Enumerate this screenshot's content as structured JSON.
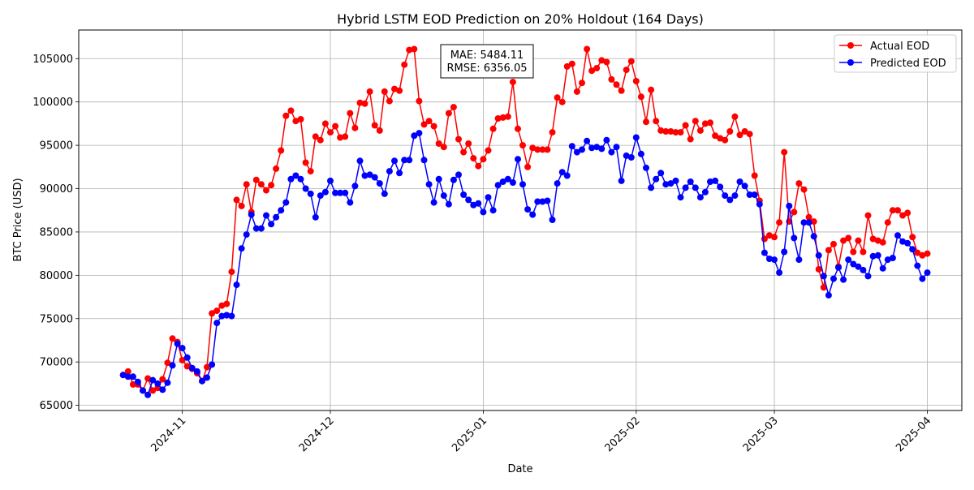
{
  "chart_data": {
    "type": "line",
    "title": "Hybrid LSTM EOD Prediction on 20% Holdout (164 Days)",
    "xlabel": "Date",
    "ylabel": "BTC Price (USD)",
    "grid": true,
    "legend_position": "top-right",
    "annotation": {
      "lines": [
        "MAE: 5484.11",
        "RMSE: 6356.05"
      ]
    },
    "x_start": "2024-10-20",
    "x_ticks": [
      {
        "date": "2024-11-01",
        "label": "2024-11"
      },
      {
        "date": "2024-12-01",
        "label": "2024-12"
      },
      {
        "date": "2025-01-01",
        "label": "2025-01"
      },
      {
        "date": "2025-02-01",
        "label": "2025-02"
      },
      {
        "date": "2025-03-01",
        "label": "2025-03"
      },
      {
        "date": "2025-04-01",
        "label": "2025-04"
      }
    ],
    "y_ticks": [
      65000,
      70000,
      75000,
      80000,
      85000,
      90000,
      95000,
      100000,
      105000
    ],
    "y_tick_labels": [
      "65000",
      "70000",
      "75000",
      "80000",
      "85000",
      "90000",
      "95000",
      "100000",
      "105000"
    ],
    "ylim": [
      64400,
      108300
    ],
    "xlim": [
      "2024-10-11",
      "2025-04-08"
    ],
    "series": [
      {
        "name": "Actual EOD",
        "color": "#ff0000",
        "values": [
          68500,
          68900,
          67400,
          67400,
          66700,
          68100,
          66700,
          67000,
          68000,
          69900,
          72700,
          72300,
          70200,
          69500,
          69200,
          68700,
          67800,
          69400,
          75600,
          75900,
          76500,
          76700,
          80400,
          88700,
          88000,
          90500,
          87300,
          91000,
          90500,
          89800,
          90400,
          92300,
          94400,
          98400,
          99000,
          97800,
          98000,
          93000,
          92000,
          96000,
          95600,
          97500,
          96500,
          97200,
          95900,
          96000,
          98700,
          97000,
          99900,
          99800,
          101200,
          97300,
          96700,
          101200,
          100100,
          101500,
          101300,
          104300,
          106000,
          106100,
          100100,
          97400,
          97800,
          97200,
          95200,
          94800,
          98700,
          99400,
          95700,
          94200,
          95200,
          93500,
          92600,
          93400,
          94400,
          96900,
          98100,
          98200,
          98300,
          102300,
          96900,
          95000,
          92500,
          94700,
          94500,
          94500,
          94500,
          96500,
          100500,
          100000,
          104100,
          104400,
          101200,
          102200,
          106100,
          103600,
          103900,
          104800,
          104600,
          102600,
          102000,
          101300,
          103700,
          104700,
          102400,
          100600,
          97700,
          101400,
          97800,
          96700,
          96600,
          96600,
          96500,
          96500,
          97300,
          95700,
          97800,
          96700,
          97500,
          97600,
          96100,
          95800,
          95600,
          96600,
          98300,
          96200,
          96600,
          96300,
          91500,
          88600,
          84200,
          84600,
          84400,
          86100,
          94200,
          86200,
          87300,
          90600,
          89900,
          86700,
          86200,
          80700,
          78600,
          82900,
          83600,
          81000,
          84000,
          84300,
          82700,
          84000,
          82700,
          86900,
          84200,
          84000,
          83800,
          86100,
          87500,
          87500,
          86900,
          87200,
          84400,
          82600,
          82300,
          82500
        ]
      },
      {
        "name": "Predicted EOD",
        "color": "#0000ff",
        "values": [
          68500,
          68300,
          68300,
          67700,
          66700,
          66200,
          67900,
          67500,
          66800,
          67600,
          69600,
          72100,
          71600,
          70500,
          69300,
          68900,
          67800,
          68200,
          69700,
          74500,
          75300,
          75400,
          75300,
          78900,
          83100,
          84700,
          87000,
          85400,
          85400,
          86900,
          85900,
          86700,
          87500,
          88400,
          91100,
          91500,
          91100,
          90000,
          89400,
          86700,
          89200,
          89600,
          90900,
          89500,
          89500,
          89500,
          88400,
          90300,
          93200,
          91500,
          91600,
          91300,
          90600,
          89400,
          92000,
          93200,
          91800,
          93300,
          93300,
          96100,
          96400,
          93300,
          90500,
          88400,
          91100,
          89200,
          88200,
          91000,
          91600,
          89300,
          88700,
          88100,
          88300,
          87300,
          89000,
          87500,
          90400,
          90800,
          91100,
          90700,
          93400,
          90500,
          87600,
          87000,
          88500,
          88500,
          88600,
          86400,
          90600,
          91900,
          91500,
          94900,
          94200,
          94500,
          95500,
          94700,
          94800,
          94600,
          95600,
          94200,
          94800,
          90900,
          93800,
          93600,
          95900,
          94000,
          92400,
          90100,
          91100,
          91800,
          90500,
          90600,
          90900,
          89000,
          90100,
          90800,
          90100,
          89000,
          89600,
          90800,
          90900,
          90200,
          89200,
          88700,
          89200,
          90800,
          90300,
          89300,
          89300,
          88200,
          82600,
          81900,
          81800,
          80300,
          82700,
          88000,
          84300,
          81800,
          86100,
          86100,
          84500,
          82300,
          79900,
          77700,
          79600,
          80900,
          79500,
          81800,
          81300,
          81000,
          80600,
          79900,
          82200,
          82300,
          80800,
          81800,
          82000,
          84600,
          83900,
          83700,
          83000,
          81100,
          79600,
          80300
        ]
      }
    ]
  }
}
